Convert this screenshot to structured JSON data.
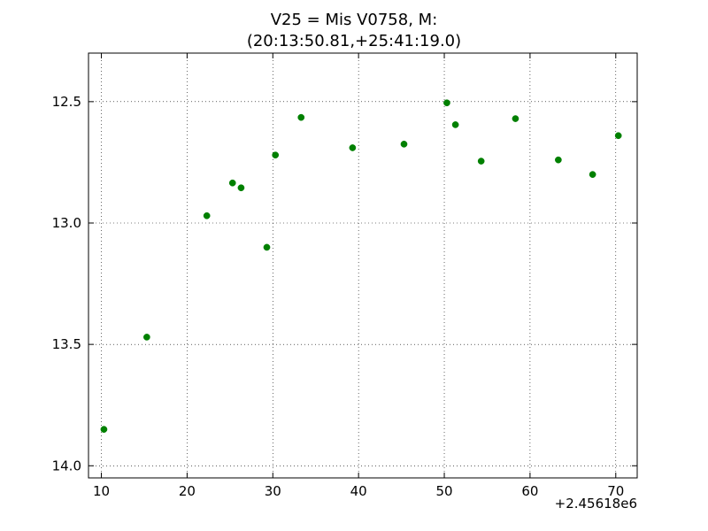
{
  "chart_data": {
    "type": "scatter",
    "title_lines": [
      "V25 = Mis V0758, M:",
      "(20:13:50.81,+25:41:19.0)"
    ],
    "xlabel": "",
    "ylabel": "",
    "x_offset_label": "+2.45618e6",
    "xlim": [
      8.5,
      72.5
    ],
    "ylim": [
      12.3,
      14.05
    ],
    "y_inverted": true,
    "grid": true,
    "marker_color": "#008000",
    "x_ticks": [
      10,
      20,
      30,
      40,
      50,
      60,
      70
    ],
    "x_tick_labels": [
      "10",
      "20",
      "30",
      "40",
      "50",
      "60",
      "70"
    ],
    "y_ticks": [
      12.5,
      13.0,
      13.5,
      14.0
    ],
    "y_tick_labels": [
      "12.5",
      "13.0",
      "13.5",
      "14.0"
    ],
    "points": [
      {
        "x": 10.3,
        "y": 13.85
      },
      {
        "x": 15.3,
        "y": 13.47
      },
      {
        "x": 22.3,
        "y": 12.97
      },
      {
        "x": 25.3,
        "y": 12.835
      },
      {
        "x": 26.3,
        "y": 12.855
      },
      {
        "x": 29.3,
        "y": 13.1
      },
      {
        "x": 30.3,
        "y": 12.72
      },
      {
        "x": 33.3,
        "y": 12.565
      },
      {
        "x": 39.3,
        "y": 12.69
      },
      {
        "x": 45.3,
        "y": 12.675
      },
      {
        "x": 50.3,
        "y": 12.505
      },
      {
        "x": 51.3,
        "y": 12.595
      },
      {
        "x": 54.3,
        "y": 12.745
      },
      {
        "x": 58.3,
        "y": 12.57
      },
      {
        "x": 63.3,
        "y": 12.74
      },
      {
        "x": 67.3,
        "y": 12.8
      },
      {
        "x": 70.3,
        "y": 12.64
      }
    ]
  }
}
